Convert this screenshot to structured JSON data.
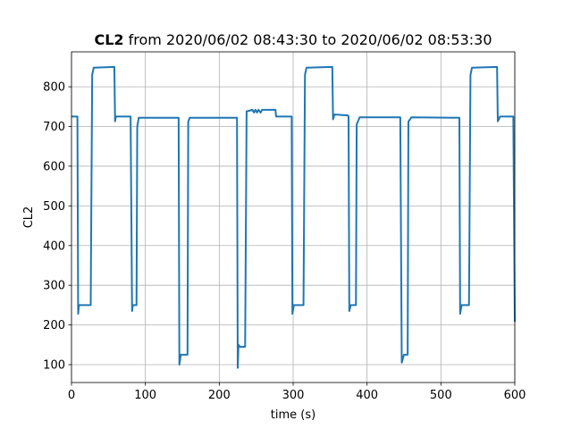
{
  "chart_data": {
    "type": "line",
    "title_bold": "CL2",
    "title_rest": " from 2020/06/02 08:43:30 to 2020/06/02 08:53:30",
    "xlabel": "time (s)",
    "ylabel": "CL2",
    "xlim": [
      0,
      600
    ],
    "ylim": [
      55,
      888
    ],
    "xticks": [
      0,
      100,
      200,
      300,
      400,
      500,
      600
    ],
    "yticks": [
      100,
      200,
      300,
      400,
      500,
      600,
      700,
      800
    ],
    "grid": true,
    "series": [
      {
        "color": "#1f77b4",
        "points": [
          [
            0,
            725
          ],
          [
            8,
            725
          ],
          [
            9,
            228
          ],
          [
            10,
            250
          ],
          [
            26,
            250
          ],
          [
            28,
            830
          ],
          [
            30,
            848
          ],
          [
            58,
            850
          ],
          [
            59,
            713
          ],
          [
            60,
            725
          ],
          [
            80,
            725
          ],
          [
            82,
            235
          ],
          [
            83,
            250
          ],
          [
            88,
            250
          ],
          [
            89,
            700
          ],
          [
            91,
            722
          ],
          [
            145,
            722
          ],
          [
            146,
            100
          ],
          [
            148,
            125
          ],
          [
            157,
            125
          ],
          [
            158,
            712
          ],
          [
            160,
            722
          ],
          [
            224,
            722
          ],
          [
            225,
            92
          ],
          [
            226,
            150
          ],
          [
            228,
            145
          ],
          [
            235,
            145
          ],
          [
            237,
            738
          ],
          [
            245,
            742
          ],
          [
            247,
            735
          ],
          [
            249,
            742
          ],
          [
            251,
            735
          ],
          [
            253,
            742
          ],
          [
            256,
            735
          ],
          [
            258,
            742
          ],
          [
            276,
            742
          ],
          [
            277,
            725
          ],
          [
            298,
            725
          ],
          [
            299,
            228
          ],
          [
            301,
            250
          ],
          [
            314,
            250
          ],
          [
            316,
            830
          ],
          [
            318,
            848
          ],
          [
            353,
            850
          ],
          [
            354,
            718
          ],
          [
            356,
            730
          ],
          [
            374,
            728
          ],
          [
            375,
            725
          ],
          [
            376,
            235
          ],
          [
            378,
            250
          ],
          [
            385,
            250
          ],
          [
            386,
            705
          ],
          [
            390,
            723
          ],
          [
            445,
            723
          ],
          [
            447,
            105
          ],
          [
            450,
            125
          ],
          [
            455,
            125
          ],
          [
            456,
            712
          ],
          [
            460,
            723
          ],
          [
            525,
            722
          ],
          [
            526,
            228
          ],
          [
            528,
            250
          ],
          [
            538,
            250
          ],
          [
            540,
            830
          ],
          [
            542,
            848
          ],
          [
            576,
            850
          ],
          [
            577,
            713
          ],
          [
            580,
            725
          ],
          [
            598,
            725
          ],
          [
            600,
            208
          ]
        ]
      }
    ]
  }
}
